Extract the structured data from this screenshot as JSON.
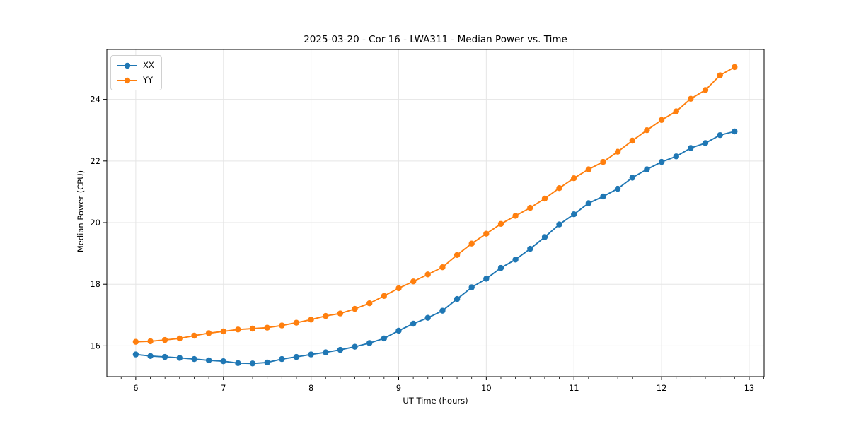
{
  "chart_data": {
    "type": "line",
    "title": "2025-03-20 - Cor 16 - LWA311 - Median Power vs. Time",
    "xlabel": "UT Time (hours)",
    "ylabel": "Median Power (CPU)",
    "xlim": [
      5.67,
      13.17
    ],
    "ylim": [
      15.0,
      25.62
    ],
    "xticks": [
      6,
      7,
      8,
      9,
      10,
      11,
      12,
      13
    ],
    "yticks": [
      16,
      18,
      20,
      22,
      24
    ],
    "x_minor_step_hours": 0.1667,
    "grid": true,
    "grid_color": "#e5e5e5",
    "legend_position": "upper left",
    "x": [
      6.0,
      6.167,
      6.333,
      6.5,
      6.667,
      6.833,
      7.0,
      7.167,
      7.333,
      7.5,
      7.667,
      7.833,
      8.0,
      8.167,
      8.333,
      8.5,
      8.667,
      8.833,
      9.0,
      9.167,
      9.333,
      9.5,
      9.667,
      9.833,
      10.0,
      10.167,
      10.333,
      10.5,
      10.667,
      10.833,
      11.0,
      11.167,
      11.333,
      11.5,
      11.667,
      11.833,
      12.0,
      12.167,
      12.333,
      12.5,
      12.667,
      12.833
    ],
    "series": [
      {
        "name": "XX",
        "color": "#1f77b4",
        "marker": "circle",
        "values": [
          15.72,
          15.67,
          15.64,
          15.61,
          15.57,
          15.53,
          15.5,
          15.44,
          15.43,
          15.46,
          15.57,
          15.64,
          15.72,
          15.79,
          15.87,
          15.97,
          16.09,
          16.24,
          16.49,
          16.72,
          16.91,
          17.14,
          17.52,
          17.9,
          18.18,
          18.53,
          18.8,
          19.15,
          19.53,
          19.94,
          20.27,
          20.63,
          20.85,
          21.1,
          21.46,
          21.73,
          21.97,
          22.15,
          22.42,
          22.58,
          22.84,
          22.96
        ]
      },
      {
        "name": "YY",
        "color": "#ff7f0e",
        "marker": "circle",
        "values": [
          16.13,
          16.15,
          16.19,
          16.24,
          16.33,
          16.41,
          16.47,
          16.53,
          16.56,
          16.59,
          16.66,
          16.75,
          16.85,
          16.97,
          17.05,
          17.2,
          17.38,
          17.62,
          17.87,
          18.09,
          18.32,
          18.55,
          18.95,
          19.32,
          19.64,
          19.96,
          20.22,
          20.48,
          20.78,
          21.12,
          21.44,
          21.73,
          21.97,
          22.3,
          22.66,
          23.0,
          23.33,
          23.61,
          24.02,
          24.3,
          24.78,
          25.05
        ]
      }
    ]
  }
}
